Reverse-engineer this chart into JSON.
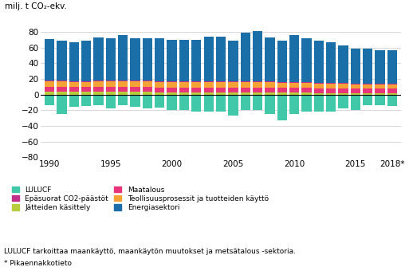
{
  "years": [
    1990,
    1991,
    1992,
    1993,
    1994,
    1995,
    1996,
    1997,
    1998,
    1999,
    2000,
    2001,
    2002,
    2003,
    2004,
    2005,
    2006,
    2007,
    2008,
    2009,
    2010,
    2011,
    2012,
    2013,
    2014,
    2015,
    2016,
    2017,
    2018
  ],
  "energiasektori": [
    53,
    51,
    50,
    52,
    55,
    54,
    58,
    54,
    54,
    55,
    53,
    53,
    53,
    57,
    57,
    52,
    62,
    64,
    56,
    53,
    60,
    56,
    54,
    52,
    48,
    45,
    45,
    43,
    43
  ],
  "teollisuus": [
    7,
    7,
    6,
    6,
    7,
    7,
    7,
    7,
    7,
    7,
    7,
    7,
    7,
    7,
    7,
    7,
    7,
    7,
    7,
    6,
    6,
    6,
    6,
    6,
    6,
    5,
    5,
    5,
    5
  ],
  "maatalous": [
    6,
    6,
    6,
    6,
    6,
    6,
    6,
    6,
    6,
    6,
    6,
    6,
    6,
    6,
    6,
    6,
    6,
    6,
    6,
    6,
    6,
    6,
    6,
    6,
    6,
    6,
    6,
    6,
    6
  ],
  "jatteiden_kasittely": [
    4,
    4,
    4,
    4,
    4,
    4,
    4,
    4,
    4,
    3,
    3,
    3,
    3,
    3,
    3,
    3,
    3,
    3,
    3,
    3,
    3,
    3,
    2,
    2,
    2,
    2,
    2,
    2,
    2
  ],
  "epasuorat": [
    1,
    1,
    1,
    1,
    1,
    1,
    1,
    1,
    1,
    1,
    1,
    1,
    1,
    1,
    1,
    1,
    1,
    1,
    1,
    1,
    1,
    1,
    1,
    1,
    1,
    1,
    1,
    1,
    1
  ],
  "lulucf": [
    -14,
    -25,
    -16,
    -15,
    -14,
    -18,
    -14,
    -16,
    -18,
    -17,
    -20,
    -20,
    -22,
    -22,
    -22,
    -27,
    -20,
    -20,
    -25,
    -33,
    -25,
    -22,
    -22,
    -22,
    -18,
    -20,
    -14,
    -14,
    -15
  ],
  "color_energiasektori": "#1a6fa8",
  "color_teollisuus": "#f4a236",
  "color_maatalous": "#e8357a",
  "color_jatteiden_kasittely": "#b8cc3d",
  "color_epasuorat": "#c0308a",
  "color_lulucf": "#40c8a8",
  "ylabel": "milj. t CO₂-ekv.",
  "ylim": [
    -80,
    100
  ],
  "yticks": [
    -80,
    -60,
    -40,
    -20,
    0,
    20,
    40,
    60,
    80
  ],
  "xtick_positions": [
    1990,
    1995,
    2000,
    2005,
    2010,
    2015,
    2018
  ],
  "xtick_labels": [
    "1990",
    "1995",
    "2000",
    "2005",
    "2010",
    "2015",
    "2018*"
  ],
  "note1": "LULUCF tarkoittaa maankäyttö, maankäytön muutokset ja metsätalous -sektoria.",
  "note2": "* Pikaennakkotieto",
  "xlim_left": 1989.3,
  "xlim_right": 2018.7
}
